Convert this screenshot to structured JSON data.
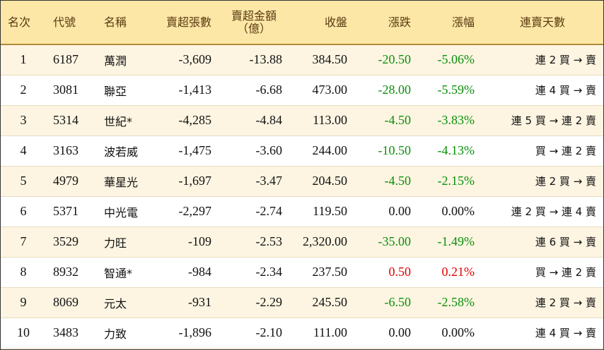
{
  "table": {
    "headers": {
      "rank": "名次",
      "code": "代號",
      "name": "名稱",
      "net_sell_lots": "賣超張數",
      "net_sell_amount_1": "賣超金額",
      "net_sell_amount_2": "（億）",
      "close": "收盤",
      "change": "漲跌",
      "change_pct": "漲幅",
      "streak": "連賣天數"
    },
    "rows": [
      {
        "rank": "1",
        "code": "6187",
        "name": "萬潤",
        "lots": "-3,609",
        "amount": "-13.88",
        "close": "384.50",
        "change": "-20.50",
        "pct": "-5.06%",
        "dir": "neg",
        "streak": "連 2 買 → 賣"
      },
      {
        "rank": "2",
        "code": "3081",
        "name": "聯亞",
        "lots": "-1,413",
        "amount": "-6.68",
        "close": "473.00",
        "change": "-28.00",
        "pct": "-5.59%",
        "dir": "neg",
        "streak": "連 4 買 → 賣"
      },
      {
        "rank": "3",
        "code": "5314",
        "name": "世紀*",
        "lots": "-4,285",
        "amount": "-4.84",
        "close": "113.00",
        "change": "-4.50",
        "pct": "-3.83%",
        "dir": "neg",
        "streak": "連 5 買 → 連 2 賣"
      },
      {
        "rank": "4",
        "code": "3163",
        "name": "波若威",
        "lots": "-1,475",
        "amount": "-3.60",
        "close": "244.00",
        "change": "-10.50",
        "pct": "-4.13%",
        "dir": "neg",
        "streak": "買 → 連 2 賣"
      },
      {
        "rank": "5",
        "code": "4979",
        "name": "華星光",
        "lots": "-1,697",
        "amount": "-3.47",
        "close": "204.50",
        "change": "-4.50",
        "pct": "-2.15%",
        "dir": "neg",
        "streak": "連 2 買 → 賣"
      },
      {
        "rank": "6",
        "code": "5371",
        "name": "中光電",
        "lots": "-2,297",
        "amount": "-2.74",
        "close": "119.50",
        "change": "0.00",
        "pct": "0.00%",
        "dir": "zero",
        "streak": "連 2 買 → 連 4 賣"
      },
      {
        "rank": "7",
        "code": "3529",
        "name": "力旺",
        "lots": "-109",
        "amount": "-2.53",
        "close": "2,320.00",
        "change": "-35.00",
        "pct": "-1.49%",
        "dir": "neg",
        "streak": "連 6 買 → 賣"
      },
      {
        "rank": "8",
        "code": "8932",
        "name": "智通*",
        "lots": "-984",
        "amount": "-2.34",
        "close": "237.50",
        "change": "0.50",
        "pct": "0.21%",
        "dir": "pos",
        "streak": "買 → 連 2 賣"
      },
      {
        "rank": "9",
        "code": "8069",
        "name": "元太",
        "lots": "-931",
        "amount": "-2.29",
        "close": "245.50",
        "change": "-6.50",
        "pct": "-2.58%",
        "dir": "neg",
        "streak": "連 2 買 → 賣"
      },
      {
        "rank": "10",
        "code": "3483",
        "name": "力致",
        "lots": "-1,896",
        "amount": "-2.10",
        "close": "111.00",
        "change": "0.00",
        "pct": "0.00%",
        "dir": "zero",
        "streak": "連 4 買 → 賣"
      }
    ]
  },
  "colors": {
    "header_bg": "#fce7a6",
    "header_text": "#5b3a12",
    "row_alt_bg": "#fdf5e2",
    "up": "#e00000",
    "down": "#0a8f0a"
  }
}
